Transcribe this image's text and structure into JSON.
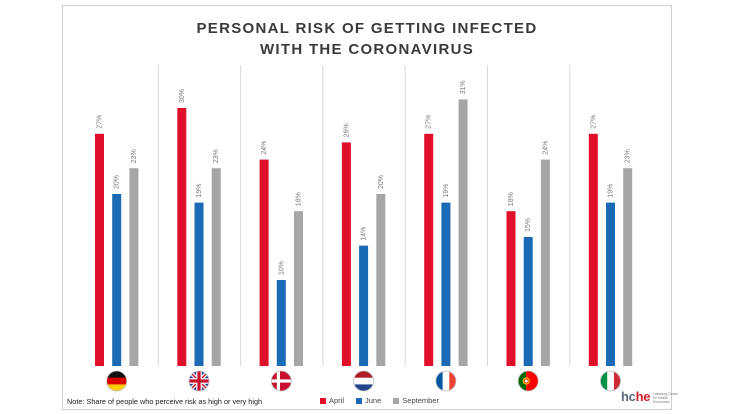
{
  "title_lines": [
    "PERSONAL RISK OF GETTING INFECTED",
    "WITH THE CORONAVIRUS"
  ],
  "note": "Note: Share of people who perceive risk as high or very high",
  "logo": {
    "mark_prefix": "hc",
    "mark_accent": "he",
    "tagline": "Hamburg Center for Health Economics"
  },
  "chart_data": {
    "type": "bar",
    "title": "PERSONAL RISK OF GETTING INFECTED WITH THE CORONAVIRUS",
    "categories": [
      "Germany",
      "United Kingdom",
      "Denmark",
      "Netherlands",
      "France",
      "Portugal",
      "Italy"
    ],
    "flags": [
      "flag-germany",
      "flag-united-kingdom",
      "flag-denmark",
      "flag-netherlands",
      "flag-france",
      "flag-portugal",
      "flag-italy"
    ],
    "series": [
      {
        "name": "April",
        "color": "#e0102a",
        "values": [
          27,
          30,
          24,
          26,
          27,
          18,
          27
        ]
      },
      {
        "name": "June",
        "color": "#1a6ab5",
        "values": [
          20,
          19,
          10,
          14,
          19,
          15,
          19
        ]
      },
      {
        "name": "September",
        "color": "#a6a6a6",
        "values": [
          23,
          23,
          18,
          20,
          31,
          24,
          23
        ]
      }
    ],
    "value_suffix": "%",
    "ylim": [
      0,
      34
    ],
    "grid": false,
    "legend_position": "bottom"
  }
}
